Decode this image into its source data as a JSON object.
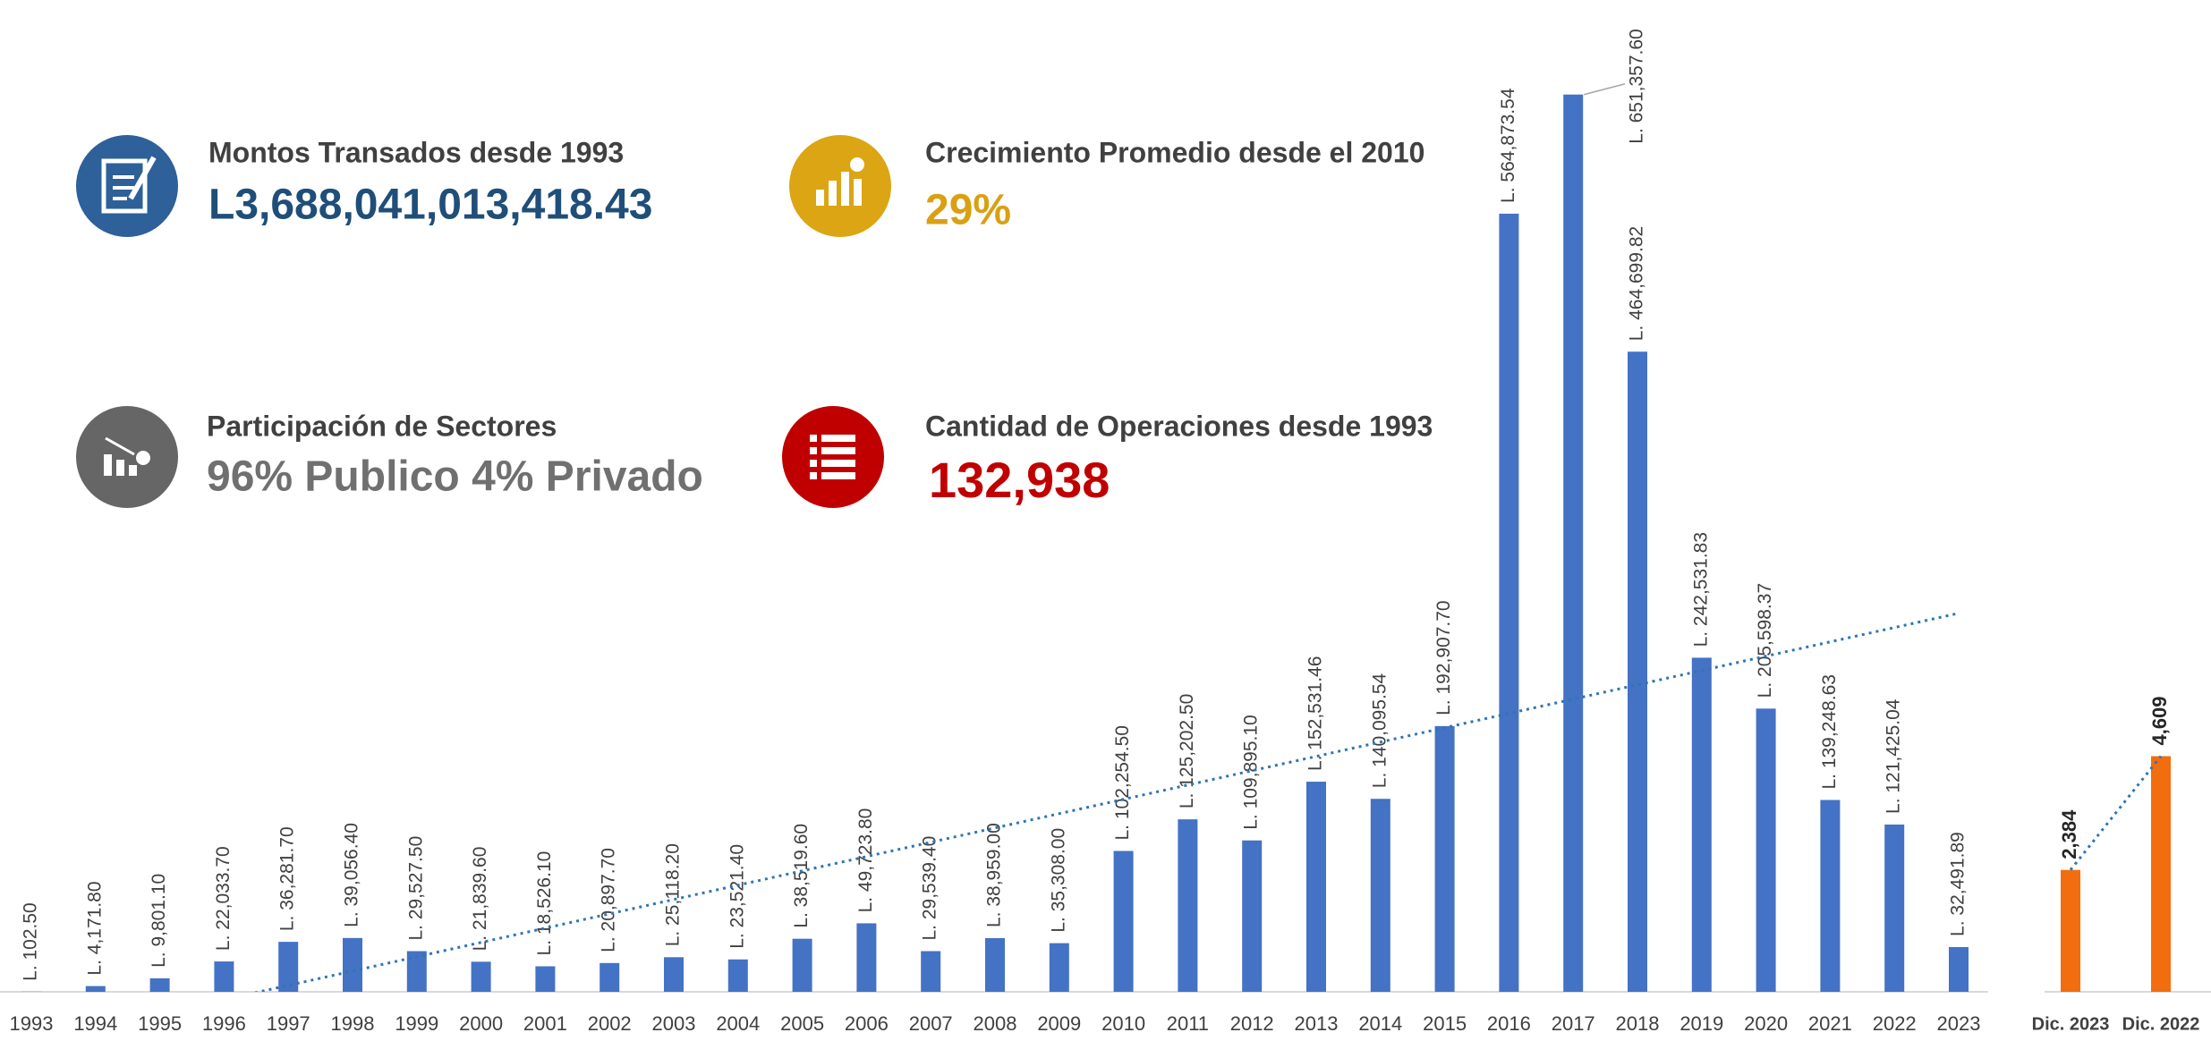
{
  "kpis": [
    {
      "title": "Montos Transados desde 1993",
      "value": "L3,688,041,013,418.43"
    },
    {
      "title": "Crecimiento Promedio desde el 2010",
      "value": "29%"
    },
    {
      "title": "Participación de Sectores",
      "value": "96% Publico 4% Privado"
    },
    {
      "title": "Cantidad de Operaciones desde 1993",
      "value": "132,938"
    }
  ],
  "chart_data": [
    {
      "type": "bar",
      "categories": [
        "1993",
        "1994",
        "1995",
        "1996",
        "1997",
        "1998",
        "1999",
        "2000",
        "2001",
        "2002",
        "2003",
        "2004",
        "2005",
        "2006",
        "2007",
        "2008",
        "2009",
        "2010",
        "2011",
        "2012",
        "2013",
        "2014",
        "2015",
        "2016",
        "2017",
        "2018",
        "2019",
        "2020",
        "2021",
        "2022",
        "2023"
      ],
      "values": [
        102.5,
        4171.8,
        9801.1,
        22033.7,
        36281.7,
        39056.4,
        29527.5,
        21839.6,
        18526.1,
        20897.7,
        25118.2,
        23521.4,
        38519.6,
        49723.8,
        29539.4,
        38959.0,
        35308.0,
        102254.5,
        125202.5,
        109895.1,
        152531.46,
        140095.54,
        192907.7,
        564873.54,
        651357.6,
        464699.82,
        242531.83,
        205598.37,
        139248.63,
        121425.04,
        32491.89
      ],
      "value_labels": [
        "L. 102.50",
        "L. 4,171.80",
        "L. 9,801.10",
        "L. 22,033.70",
        "L. 36,281.70",
        "L. 39,056.40",
        "L. 29,527.50",
        "L. 21,839.60",
        "L. 18,526.10",
        "L. 20,897.70",
        "L. 25,118.20",
        "L. 23,521.40",
        "L. 38,519.60",
        "L. 49,723.80",
        "L. 29,539.40",
        "L. 38,959.00",
        "L. 35,308.00",
        "L. 102,254.50",
        "L. 125,202.50",
        "L. 109,895.10",
        "L. 152,531.46",
        "L. 140,095.54",
        "L. 192,907.70",
        "L. 564,873.54",
        "L. 651,357.60",
        "L. 464,699.82",
        "L. 242,531.83",
        "L. 205,598.37",
        "L. 139,248.63",
        "L. 121,425.04",
        "L. 32,491.89"
      ],
      "color": "#4472c4",
      "ylim": [
        0,
        720000
      ],
      "trendline": "linear",
      "trendline_color": "#2e75b6"
    },
    {
      "type": "bar",
      "categories": [
        "Dic. 2023",
        "Dic. 2022"
      ],
      "values": [
        2384,
        4609
      ],
      "value_labels": [
        "2,384",
        "4,609"
      ],
      "color": "#f26d0f",
      "ylim": [
        0,
        19400
      ],
      "trendline": "linear",
      "trendline_color": "#2e75b6"
    }
  ]
}
